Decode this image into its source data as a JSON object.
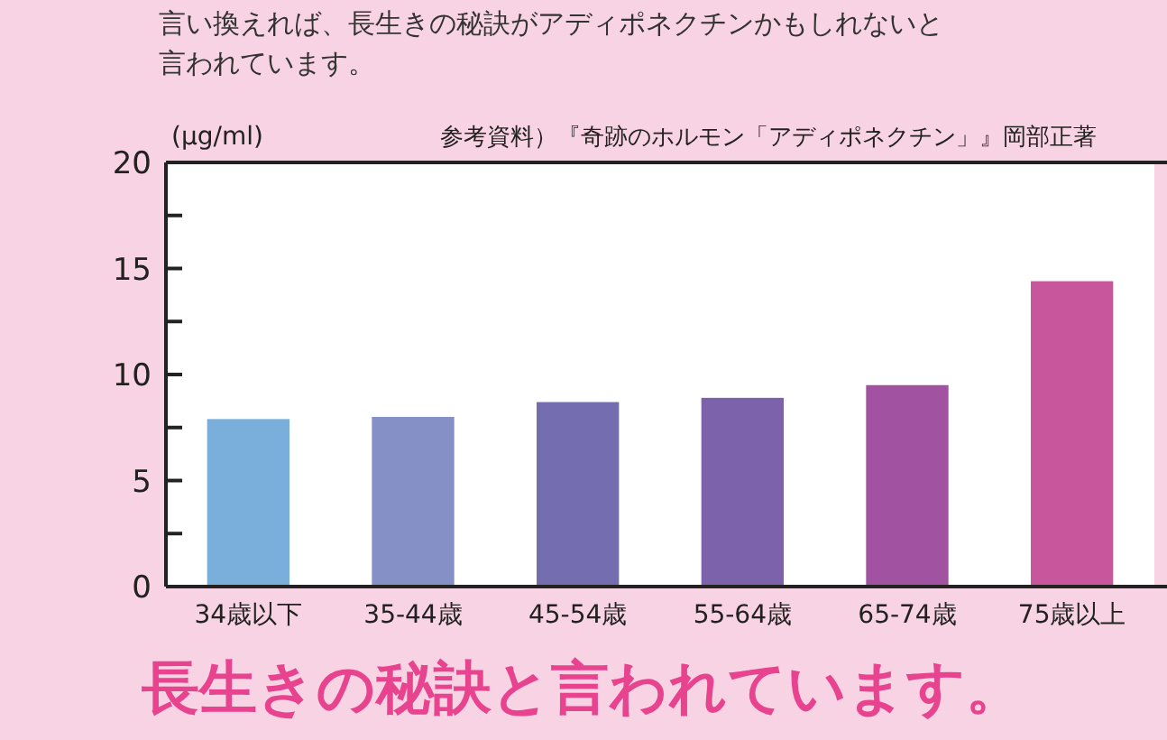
{
  "chart_data": {
    "type": "bar",
    "ylabel": "(µg/ml)",
    "categories": [
      "34歳以下",
      "35-44歳",
      "45-54歳",
      "55-64歳",
      "65-74歳",
      "75歳以上"
    ],
    "values": [
      7.9,
      8.0,
      8.7,
      8.9,
      9.5,
      14.4
    ],
    "colors": [
      "#7aafdc",
      "#8490c6",
      "#746db0",
      "#7b62aa",
      "#a152a0",
      "#c8569d"
    ],
    "ylim": [
      0,
      20
    ],
    "yticks": [
      0,
      {
        "value": 2.5,
        "label": null
      },
      5,
      {
        "value": 7.5,
        "label": null
      },
      10,
      {
        "value": 12.5,
        "label": null
      },
      15,
      {
        "value": 17.5,
        "label": null
      },
      20
    ],
    "grid": false,
    "annotations": [
      "言い換えれば、長生きの秘訣がアディポネクチンかもしれないと言われています。",
      "参考資料）『奇跡のホルモン「アディポネクチン」』岡部正著",
      "長生きの秘訣と言われています。"
    ]
  }
}
